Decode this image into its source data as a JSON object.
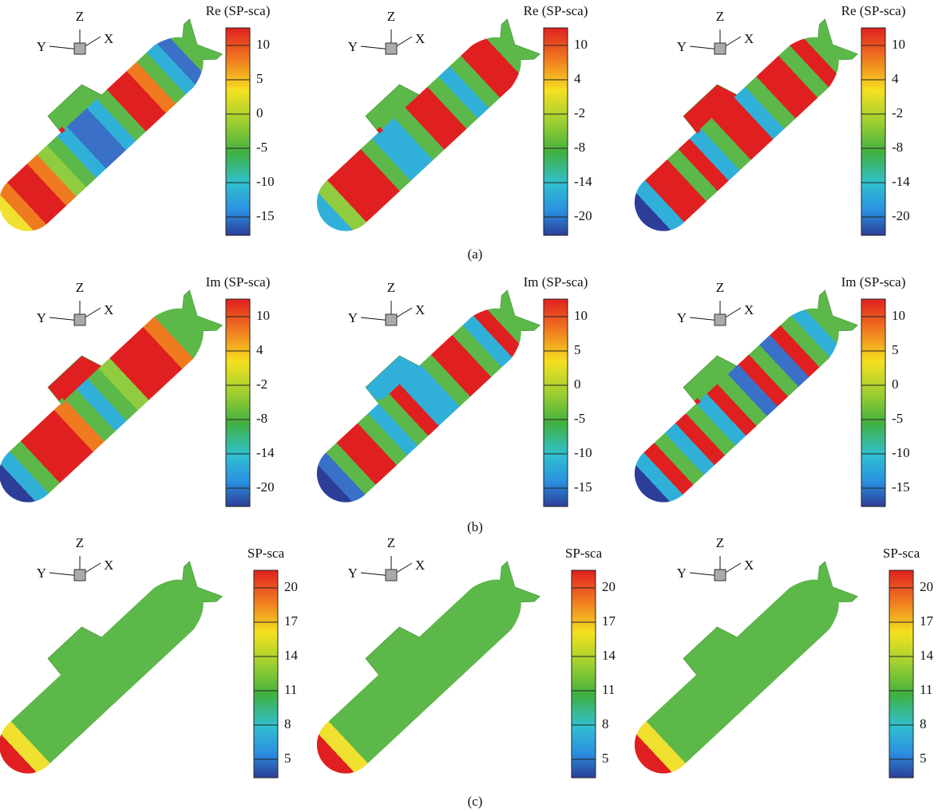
{
  "rows": [
    {
      "caption": "(a)",
      "panels": [
        {
          "triad": {
            "x": "X",
            "y": "Y",
            "z": "Z"
          },
          "colorbar": {
            "title": "Re (SP-sca)",
            "ticks": [
              10,
              5,
              0,
              -5,
              -10,
              -15
            ]
          }
        },
        {
          "triad": {
            "x": "X",
            "y": "Y",
            "z": "Z"
          },
          "colorbar": {
            "title": "Re (SP-sca)",
            "ticks": [
              10,
              4,
              -2,
              -8,
              -14,
              -20
            ]
          }
        },
        {
          "triad": {
            "x": "X",
            "y": "Y",
            "z": "Z"
          },
          "colorbar": {
            "title": "Re (SP-sca)",
            "ticks": [
              10,
              4,
              -2,
              -8,
              -14,
              -20
            ]
          }
        }
      ]
    },
    {
      "caption": "(b)",
      "panels": [
        {
          "triad": {
            "x": "X",
            "y": "Y",
            "z": "Z"
          },
          "colorbar": {
            "title": "Im (SP-sca)",
            "ticks": [
              10,
              4,
              -2,
              -8,
              -14,
              -20
            ]
          }
        },
        {
          "triad": {
            "x": "X",
            "y": "Y",
            "z": "Z"
          },
          "colorbar": {
            "title": "Im (SP-sca)",
            "ticks": [
              10,
              5,
              0,
              -5,
              -10,
              -15
            ]
          }
        },
        {
          "triad": {
            "x": "X",
            "y": "Y",
            "z": "Z"
          },
          "colorbar": {
            "title": "Im (SP-sca)",
            "ticks": [
              10,
              5,
              0,
              -5,
              -10,
              -15
            ]
          }
        }
      ]
    },
    {
      "caption": "(c)",
      "panels": [
        {
          "triad": {
            "x": "X",
            "y": "Y",
            "z": "Z"
          },
          "colorbar": {
            "title": "SP-sca",
            "ticks": [
              20,
              17,
              14,
              11,
              8,
              5
            ]
          }
        },
        {
          "triad": {
            "x": "X",
            "y": "Y",
            "z": "Z"
          },
          "colorbar": {
            "title": "SP-sca",
            "ticks": [
              20,
              17,
              14,
              11,
              8,
              5
            ]
          }
        },
        {
          "triad": {
            "x": "X",
            "y": "Y",
            "z": "Z"
          },
          "colorbar": {
            "title": "SP-sca",
            "ticks": [
              20,
              17,
              14,
              11,
              8,
              5
            ]
          }
        }
      ]
    }
  ]
}
